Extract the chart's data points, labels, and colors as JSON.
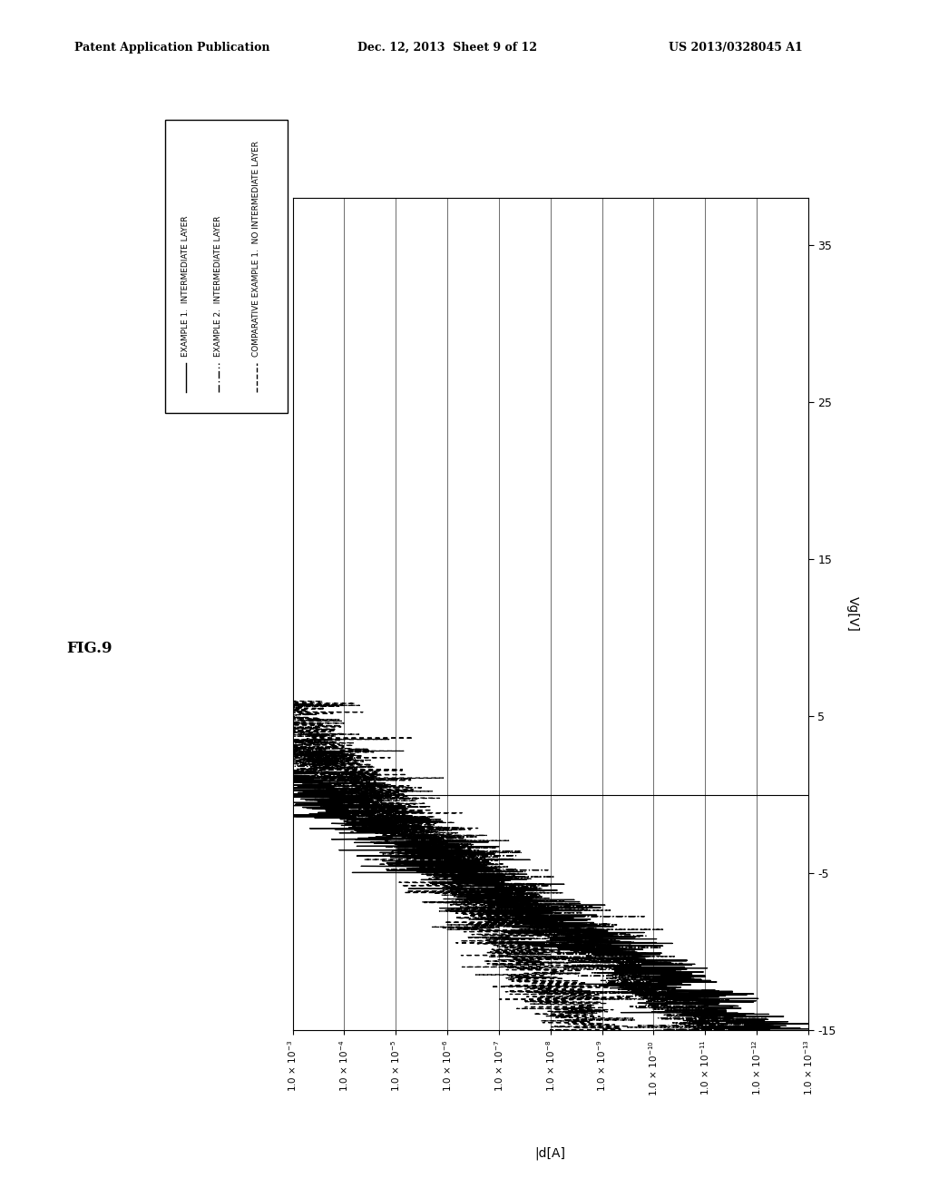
{
  "header_left": "Patent Application Publication",
  "header_mid": "Dec. 12, 2013  Sheet 9 of 12",
  "header_right": "US 2013/0328045 A1",
  "fig_label": "FIG.9",
  "xlabel": "|d[A]",
  "ylabel": "Vg[V]",
  "legend_entries": [
    {
      "label": "EXAMPLE 1.  INTERMEDIATE LAYER",
      "style": "solid"
    },
    {
      "label": "EXAMPLE 2.  INTERMEDIATE LAYER",
      "style": "dashdot"
    },
    {
      "label": "COMPARATIVE EXAMPLE 1.  NO INTERMEDIATE LAYER",
      "style": "dashed"
    }
  ],
  "vg_min": -15,
  "vg_max": 38,
  "log_id_min": -13,
  "log_id_max": -3,
  "x_ticks": [
    -13,
    -12,
    -11,
    -10,
    -9,
    -8,
    -7,
    -6,
    -5,
    -4,
    -3
  ],
  "y_ticks": [
    -15,
    -5,
    5,
    15,
    25,
    35
  ],
  "background": "#ffffff"
}
